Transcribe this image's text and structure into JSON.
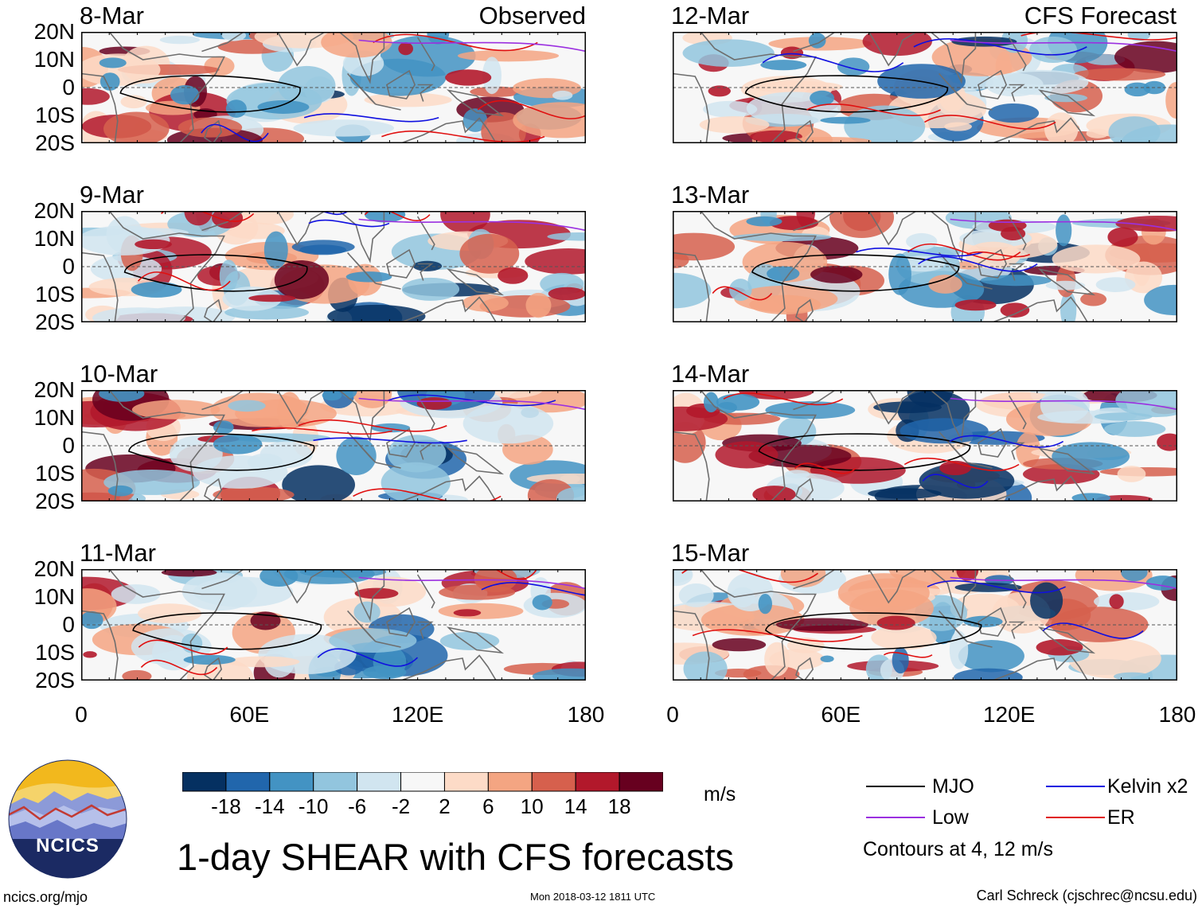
{
  "figure": {
    "title": "1-day SHEAR with CFS forecasts",
    "units": "m/s",
    "contours_note": "Contours at 4, 12 m/s",
    "source_site": "ncics.org/mjo",
    "timestamp": "Mon 2018-03-12 1811 UTC",
    "author": "Carl Schreck (cjschrec@ncsu.edu)",
    "logo_text": "NCICS"
  },
  "columns": [
    {
      "label": "Observed"
    },
    {
      "label": "CFS Forecast"
    }
  ],
  "panels": [
    {
      "date": "8-Mar",
      "column": 0,
      "row": 0
    },
    {
      "date": "9-Mar",
      "column": 0,
      "row": 1
    },
    {
      "date": "10-Mar",
      "column": 0,
      "row": 2
    },
    {
      "date": "11-Mar",
      "column": 0,
      "row": 3
    },
    {
      "date": "12-Mar",
      "column": 1,
      "row": 0
    },
    {
      "date": "13-Mar",
      "column": 1,
      "row": 1
    },
    {
      "date": "14-Mar",
      "column": 1,
      "row": 2
    },
    {
      "date": "15-Mar",
      "column": 1,
      "row": 3
    }
  ],
  "axes": {
    "lat_ticks": [
      "20N",
      "10N",
      "0",
      "10S",
      "20S"
    ],
    "lat_values": [
      20,
      10,
      0,
      -10,
      -20
    ],
    "lon_ticks": [
      "0",
      "60E",
      "120E",
      "180"
    ],
    "lon_values": [
      0,
      60,
      120,
      180
    ]
  },
  "colorbar": {
    "labels": [
      "-18",
      "-14",
      "-10",
      "-6",
      "-2",
      "2",
      "6",
      "10",
      "14",
      "18"
    ],
    "colors": [
      "#053061",
      "#2166ac",
      "#4393c3",
      "#92c5de",
      "#d1e5f0",
      "#f7f7f7",
      "#fddbc7",
      "#f4a582",
      "#d6604d",
      "#b2182b",
      "#67001f"
    ]
  },
  "legend": [
    {
      "label": "MJO",
      "color": "#000000"
    },
    {
      "label": "Kelvin x2",
      "color": "#1010e0"
    },
    {
      "label": "Low",
      "color": "#9b30e0"
    },
    {
      "label": "ER",
      "color": "#e01010"
    }
  ]
}
